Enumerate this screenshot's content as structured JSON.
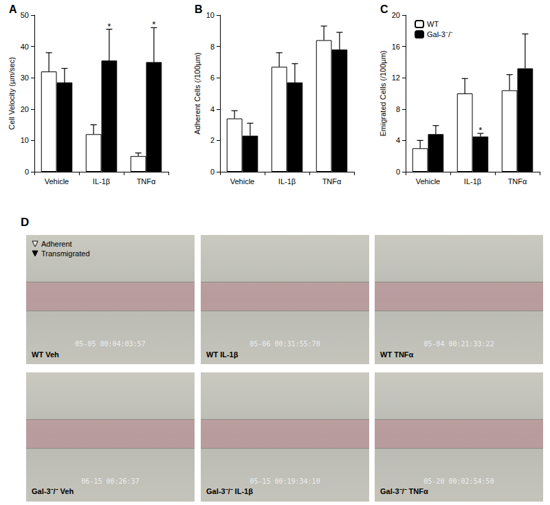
{
  "chart_data": [
    {
      "type": "bar",
      "title": "A",
      "ylabel": "Cell Velocity (µm/sec)",
      "categories": [
        "Vehicle",
        "IL-1β",
        "TNFα"
      ],
      "series": [
        {
          "name": "WT",
          "color": "#ffffff",
          "values": [
            32,
            12,
            5
          ],
          "errors": [
            6,
            3,
            1
          ]
        },
        {
          "name": "Gal-3⁻/⁻",
          "color": "#000000",
          "values": [
            28.5,
            35.5,
            35
          ],
          "errors": [
            4.5,
            10,
            11
          ]
        }
      ],
      "ylim": [
        0,
        50
      ],
      "yticks": [
        0,
        10,
        20,
        30,
        40,
        50
      ],
      "grid": false,
      "annotations": [
        {
          "text": "*",
          "series": "Gal-3⁻/⁻",
          "category": "IL-1β"
        },
        {
          "text": "*",
          "series": "Gal-3⁻/⁻",
          "category": "TNFα"
        }
      ]
    },
    {
      "type": "bar",
      "title": "B",
      "ylabel": "Adherent Cells (/100µm)",
      "categories": [
        "Vehicle",
        "IL-1β",
        "TNFα"
      ],
      "series": [
        {
          "name": "WT",
          "color": "#ffffff",
          "values": [
            3.4,
            6.7,
            8.4
          ],
          "errors": [
            0.5,
            0.9,
            0.9
          ]
        },
        {
          "name": "Gal-3⁻/⁻",
          "color": "#000000",
          "values": [
            2.3,
            5.7,
            7.8
          ],
          "errors": [
            0.8,
            1.2,
            1.1
          ]
        }
      ],
      "ylim": [
        0,
        10
      ],
      "yticks": [
        0,
        2,
        4,
        6,
        8,
        10
      ],
      "grid": false
    },
    {
      "type": "bar",
      "title": "C",
      "ylabel": "Emigrated Cells (/100µm)",
      "categories": [
        "Vehicle",
        "IL-1β",
        "TNFα"
      ],
      "series": [
        {
          "name": "WT",
          "color": "#ffffff",
          "values": [
            3,
            10,
            10.4
          ],
          "errors": [
            1,
            1.9,
            2
          ]
        },
        {
          "name": "Gal-3⁻/⁻",
          "color": "#000000",
          "values": [
            4.8,
            4.5,
            13.2
          ],
          "errors": [
            1.1,
            0.4,
            4.4
          ]
        }
      ],
      "ylim": [
        0,
        20
      ],
      "yticks": [
        0,
        4,
        8,
        12,
        16,
        20
      ],
      "grid": false,
      "legend": "upper left",
      "annotations": [
        {
          "text": "*",
          "series": "Gal-3⁻/⁻",
          "category": "IL-1β"
        }
      ]
    }
  ],
  "panel_d": {
    "label": "D",
    "legend": [
      {
        "marker": "open",
        "text": "Adherent"
      },
      {
        "marker": "filled",
        "text": "Transmigrated"
      }
    ],
    "images": [
      {
        "caption": "WT Veh",
        "timestamp": "05-05 00:04:03:57"
      },
      {
        "caption": "WT IL-1β",
        "timestamp": "05-06 00:31:55:70"
      },
      {
        "caption": "WT TNFα",
        "timestamp": "05-04 00:21:33:22"
      },
      {
        "caption": "Gal-3⁻/⁻ Veh",
        "timestamp": "06-15 00:26:37"
      },
      {
        "caption": "Gal-3⁻/⁻ IL-1β",
        "timestamp": "05-15 00:19:34:10"
      },
      {
        "caption": "Gal-3⁻/⁻ TNFα",
        "timestamp": "05-20 00:02:54:50"
      }
    ]
  }
}
